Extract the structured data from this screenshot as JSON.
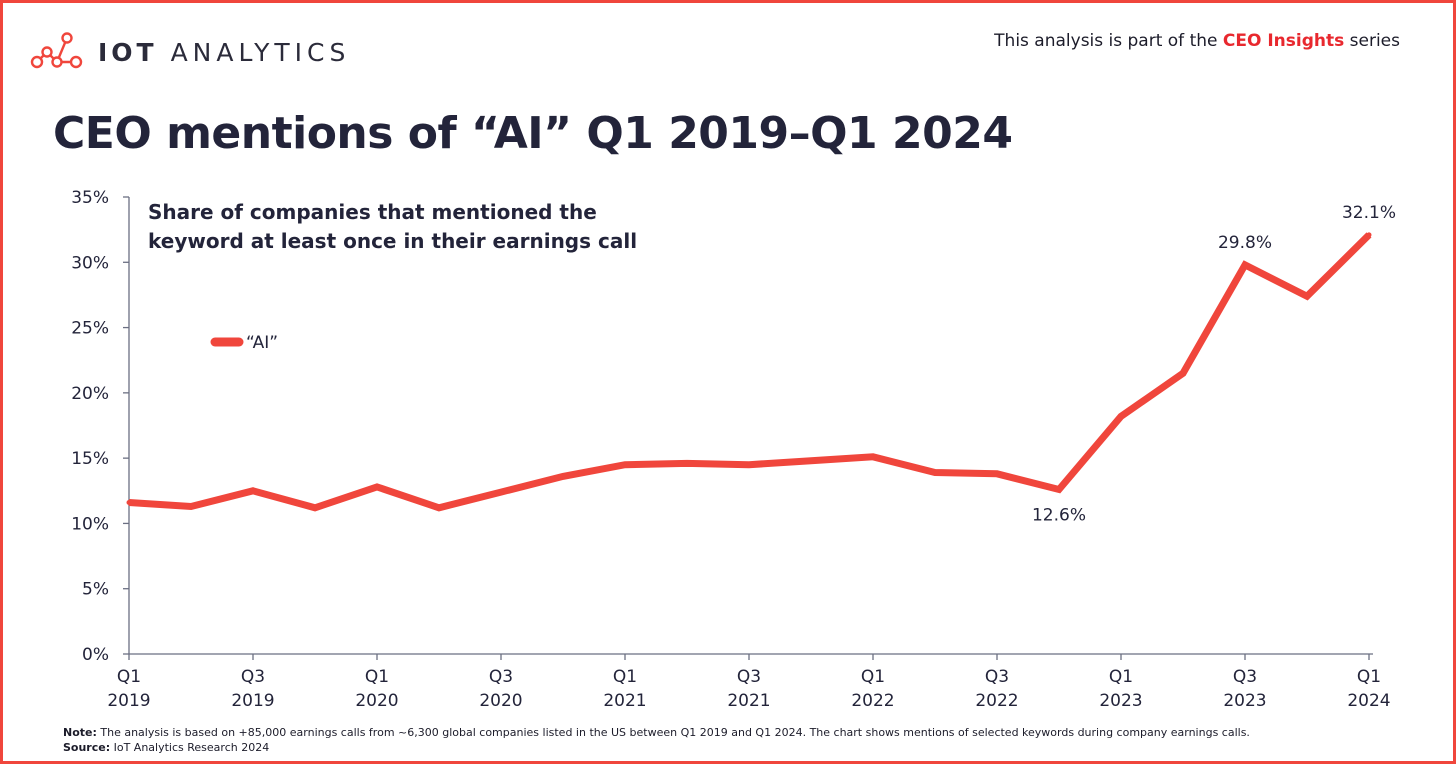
{
  "header": {
    "logo_bold": "IOT",
    "logo_light": "ANALYTICS",
    "series_note_prefix": "This analysis is part of the ",
    "series_note_highlight": "CEO Insights",
    "series_note_suffix": " series"
  },
  "footer": {
    "note_label": "Note:",
    "note_text": " The analysis is based on +85,000 earnings calls from ~6,300 global companies listed in the US between Q1 2019 and Q1 2024. The chart shows mentions of selected keywords during company earnings calls.",
    "source_label": "Source:",
    "source_text": " IoT Analytics Research 2024"
  },
  "colors": {
    "line": "#f0463c",
    "accent": "#e8282e",
    "text": "#23243a",
    "frame": "#f0463c"
  },
  "chart_data": {
    "type": "line",
    "title": "CEO mentions of “AI” Q1 2019–Q1 2024",
    "subtitle_lines": [
      "Share of companies that mentioned the",
      "keyword at least once in their earnings call"
    ],
    "x": [
      "Q1 2019",
      "Q2 2019",
      "Q3 2019",
      "Q4 2019",
      "Q1 2020",
      "Q2 2020",
      "Q3 2020",
      "Q4 2020",
      "Q1 2021",
      "Q2 2021",
      "Q3 2021",
      "Q4 2021",
      "Q1 2022",
      "Q2 2022",
      "Q3 2022",
      "Q4 2022",
      "Q1 2023",
      "Q2 2023",
      "Q3 2023",
      "Q4 2023",
      "Q1 2024"
    ],
    "x_tick_labels": [
      {
        "index": 0,
        "top": "Q1",
        "bottom": "2019"
      },
      {
        "index": 2,
        "top": "Q3",
        "bottom": "2019"
      },
      {
        "index": 4,
        "top": "Q1",
        "bottom": "2020"
      },
      {
        "index": 6,
        "top": "Q3",
        "bottom": "2020"
      },
      {
        "index": 8,
        "top": "Q1",
        "bottom": "2021"
      },
      {
        "index": 10,
        "top": "Q3",
        "bottom": "2021"
      },
      {
        "index": 12,
        "top": "Q1",
        "bottom": "2022"
      },
      {
        "index": 14,
        "top": "Q3",
        "bottom": "2022"
      },
      {
        "index": 16,
        "top": "Q1",
        "bottom": "2023"
      },
      {
        "index": 18,
        "top": "Q3",
        "bottom": "2023"
      },
      {
        "index": 20,
        "top": "Q1",
        "bottom": "2024"
      }
    ],
    "series": [
      {
        "name": "“AI”",
        "values": [
          11.6,
          11.3,
          12.5,
          11.2,
          12.8,
          11.2,
          12.4,
          13.6,
          14.5,
          14.6,
          14.5,
          14.8,
          15.1,
          13.9,
          13.8,
          12.6,
          18.2,
          21.5,
          29.8,
          27.4,
          32.1
        ]
      }
    ],
    "data_labels": [
      {
        "index": 15,
        "text": "12.6%",
        "position": "below"
      },
      {
        "index": 18,
        "text": "29.8%",
        "position": "above"
      },
      {
        "index": 20,
        "text": "32.1%",
        "position": "above"
      }
    ],
    "y_ticks": [
      "0%",
      "5%",
      "10%",
      "15%",
      "20%",
      "25%",
      "30%",
      "35%"
    ],
    "ylim": [
      0,
      35
    ],
    "grid": false,
    "legend_position": "upper-left"
  }
}
